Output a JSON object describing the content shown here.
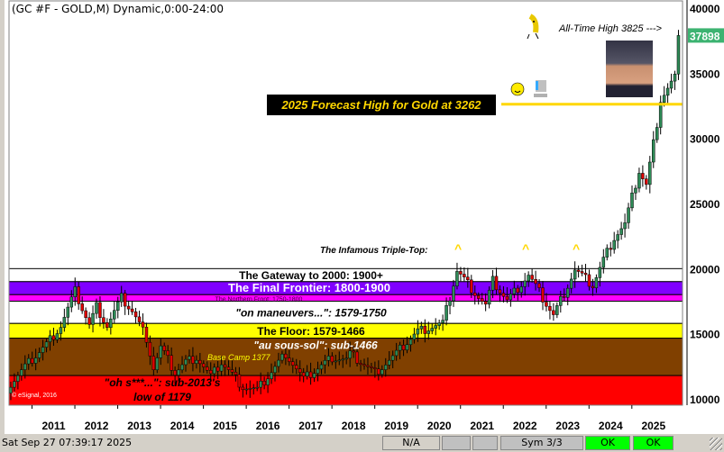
{
  "header": {
    "title": "(GC #F - GOLD,M) Dynamic,0:00-24:00"
  },
  "status": {
    "datetime": "Sat Sep 27 07:39:17 2025",
    "na": "N/A",
    "sym": "Sym 3/3",
    "ok1": "OK",
    "ok2": "OK"
  },
  "annotations": {
    "forecast": "2025 Forecast High for Gold at 3262",
    "ath": "All-Time High 3825 --->",
    "triple_top": "The Infamous Triple-Top:",
    "caret": "^",
    "base_camp": "Base Camp 1377",
    "copyright": "© eSignal, 2016"
  },
  "colors": {
    "up": "#2e8b57",
    "down": "#e00000",
    "forecast_line": "#ffd700",
    "last_price_bg": "#3cb371"
  },
  "chart_data": {
    "type": "candlestick",
    "title": "(GC #F - GOLD,M) Dynamic,0:00-24:00",
    "ylim": [
      10000,
      40000
    ],
    "yticks": [
      10000,
      15000,
      20000,
      25000,
      30000,
      35000,
      40000
    ],
    "xticks": [
      "2011",
      "2012",
      "2013",
      "2014",
      "2015",
      "2016",
      "2017",
      "2018",
      "2019",
      "2020",
      "2021",
      "2022",
      "2023",
      "2024",
      "2025"
    ],
    "last_price": "37898",
    "forecast_level": 32620,
    "bands": [
      {
        "name": "The Gateway to 2000:  1900+",
        "from": 19000,
        "to": 20000,
        "color": "#ffffff",
        "text": "#000000"
      },
      {
        "name": "The Final Frontier:  1800-1900",
        "from": 18000,
        "to": 19000,
        "color": "#8000ff",
        "text": "#ffffff"
      },
      {
        "name": "The Northern Front:  1750-1800",
        "from": 17500,
        "to": 18000,
        "color": "#ff00ff",
        "text": "#400040"
      },
      {
        "name": "\"on maneuvers...\":  1579-1750",
        "from": 15790,
        "to": 17500,
        "color": "#ffffff",
        "text": "#000000"
      },
      {
        "name": "The Floor:  1579-1466",
        "from": 14660,
        "to": 15790,
        "color": "#ffff00",
        "text": "#000000"
      },
      {
        "name": "\"au sous-sol\":  sub-1466",
        "from": 11790,
        "to": 14660,
        "color": "#804000",
        "text": "#ffffff"
      },
      {
        "name": "\"oh s***...\":  sub-2013's\nlow of 1179",
        "from": 9000,
        "to": 11790,
        "color": "#ff0000",
        "text": "#000000"
      }
    ],
    "close_anchors": [
      [
        "2010-01",
        10800
      ],
      [
        "2010-06",
        12450
      ],
      [
        "2010-12",
        14200
      ],
      [
        "2011-04",
        15600
      ],
      [
        "2011-08",
        18250
      ],
      [
        "2011-12",
        15650
      ],
      [
        "2012-02",
        17100
      ],
      [
        "2012-05",
        15600
      ],
      [
        "2012-09",
        17750
      ],
      [
        "2012-12",
        16750
      ],
      [
        "2013-04",
        14700
      ],
      [
        "2013-06",
        12350
      ],
      [
        "2013-08",
        13950
      ],
      [
        "2013-12",
        12000
      ],
      [
        "2014-03",
        12850
      ],
      [
        "2014-06",
        13200
      ],
      [
        "2014-10",
        11700
      ],
      [
        "2015-01",
        12800
      ],
      [
        "2015-07",
        10950
      ],
      [
        "2015-11",
        10650
      ],
      [
        "2016-07",
        13500
      ],
      [
        "2016-12",
        11500
      ],
      [
        "2017-08",
        13200
      ],
      [
        "2017-12",
        13000
      ],
      [
        "2018-01",
        13450
      ],
      [
        "2018-08",
        12000
      ],
      [
        "2019-01",
        13200
      ],
      [
        "2019-08",
        15200
      ],
      [
        "2020-03",
        15800
      ],
      [
        "2020-07",
        19850
      ],
      [
        "2021-03",
        17150
      ],
      [
        "2021-05",
        19050
      ],
      [
        "2021-09",
        17550
      ],
      [
        "2022-03",
        19500
      ],
      [
        "2022-10",
        16400
      ],
      [
        "2023-04",
        19900
      ],
      [
        "2023-09",
        18700
      ],
      [
        "2023-12",
        20700
      ],
      [
        "2024-03",
        22400
      ],
      [
        "2024-06",
        23400
      ],
      [
        "2024-10",
        27500
      ],
      [
        "2024-12",
        26400
      ],
      [
        "2025-03",
        31200
      ],
      [
        "2025-04",
        33000
      ],
      [
        "2025-08",
        34700
      ],
      [
        "2025-09",
        37898
      ]
    ]
  }
}
